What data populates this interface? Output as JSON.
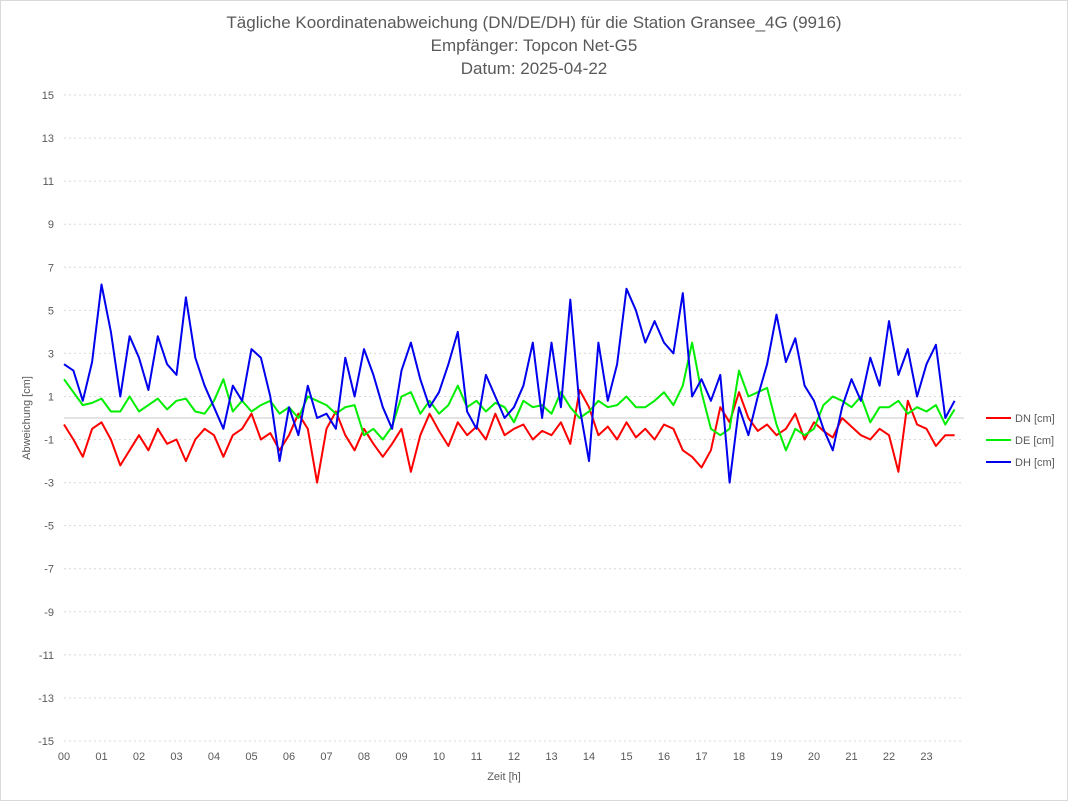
{
  "chart_data": {
    "type": "line",
    "title": [
      "Tägliche Koordinatenabweichung (DN/DE/DH) für die Station Gransee_4G (9916)",
      "Empfänger: Topcon Net-G5",
      "Datum: 2025-04-22"
    ],
    "xlabel": "Zeit [h]",
    "ylabel": "Abweichung [cm]",
    "xlim": [
      0,
      24
    ],
    "ylim": [
      -15,
      15
    ],
    "x_ticks": [
      "00",
      "01",
      "02",
      "03",
      "04",
      "05",
      "06",
      "07",
      "08",
      "09",
      "10",
      "11",
      "12",
      "13",
      "14",
      "15",
      "16",
      "17",
      "18",
      "19",
      "20",
      "21",
      "22",
      "23"
    ],
    "y_ticks": [
      15,
      13,
      11,
      9,
      7,
      5,
      3,
      1,
      -1,
      -3,
      -5,
      -7,
      -9,
      -11,
      -13,
      -15
    ],
    "grid": "horizontal dotted",
    "legend_position": "right",
    "x_start_h": 0,
    "x_step_h": 0.25,
    "series": [
      {
        "name": "DN [cm]",
        "color": "#ff0000",
        "values": [
          -0.3,
          -1.0,
          -1.8,
          -0.5,
          -0.2,
          -1.0,
          -2.2,
          -1.5,
          -0.8,
          -1.5,
          -0.5,
          -1.2,
          -1.0,
          -2.0,
          -1.0,
          -0.5,
          -0.8,
          -1.8,
          -0.8,
          -0.5,
          0.2,
          -1.0,
          -0.7,
          -1.5,
          -0.8,
          0.2,
          -0.5,
          -3.0,
          -0.5,
          0.3,
          -0.8,
          -1.5,
          -0.5,
          -1.2,
          -1.8,
          -1.2,
          -0.5,
          -2.5,
          -0.8,
          0.2,
          -0.6,
          -1.3,
          -0.2,
          -0.8,
          -0.4,
          -1.0,
          0.2,
          -0.8,
          -0.5,
          -0.3,
          -1.0,
          -0.6,
          -0.8,
          -0.2,
          -1.2,
          1.3,
          0.5,
          -0.8,
          -0.4,
          -1.0,
          -0.2,
          -0.9,
          -0.5,
          -1.0,
          -0.3,
          -0.5,
          -1.5,
          -1.8,
          -2.3,
          -1.5,
          0.5,
          -0.2,
          1.2,
          0.0,
          -0.6,
          -0.3,
          -0.8,
          -0.5,
          0.2,
          -1.0,
          -0.2,
          -0.6,
          -0.9,
          0.0,
          -0.4,
          -0.8,
          -1.0,
          -0.5,
          -0.8,
          -2.5,
          0.8,
          -0.3,
          -0.5,
          -1.3,
          -0.8,
          -0.8
        ]
      },
      {
        "name": "DE [cm]",
        "color": "#00ee00",
        "values": [
          1.8,
          1.2,
          0.6,
          0.7,
          0.9,
          0.3,
          0.3,
          1.0,
          0.3,
          0.6,
          0.9,
          0.4,
          0.8,
          0.9,
          0.3,
          0.2,
          0.8,
          1.8,
          0.3,
          0.8,
          0.3,
          0.6,
          0.8,
          0.2,
          0.5,
          0.0,
          1.0,
          0.8,
          0.6,
          0.2,
          0.5,
          0.6,
          -0.8,
          -0.5,
          -1.0,
          -0.4,
          1.0,
          1.2,
          0.2,
          0.8,
          0.2,
          0.6,
          1.5,
          0.5,
          0.8,
          0.3,
          0.7,
          0.5,
          -0.2,
          0.8,
          0.5,
          0.6,
          0.2,
          1.2,
          0.5,
          0.0,
          0.3,
          0.8,
          0.5,
          0.6,
          1.0,
          0.5,
          0.5,
          0.8,
          1.2,
          0.6,
          1.5,
          3.5,
          1.2,
          -0.5,
          -0.8,
          -0.5,
          2.2,
          1.0,
          1.2,
          1.4,
          -0.3,
          -1.5,
          -0.5,
          -0.8,
          -0.5,
          0.6,
          1.0,
          0.8,
          0.5,
          1.0,
          -0.2,
          0.5,
          0.5,
          0.8,
          0.2,
          0.5,
          0.3,
          0.6,
          -0.3,
          0.4
        ]
      },
      {
        "name": "DH [cm]",
        "color": "#0000ee",
        "values": [
          2.5,
          2.2,
          0.8,
          2.6,
          6.2,
          4.0,
          1.0,
          3.8,
          2.8,
          1.3,
          3.8,
          2.5,
          2.0,
          5.6,
          2.8,
          1.5,
          0.5,
          -0.5,
          1.5,
          0.8,
          3.2,
          2.8,
          1.0,
          -2.0,
          0.5,
          -0.8,
          1.5,
          0.0,
          0.2,
          -0.5,
          2.8,
          1.0,
          3.2,
          2.0,
          0.5,
          -0.5,
          2.2,
          3.5,
          1.8,
          0.5,
          1.2,
          2.5,
          4.0,
          0.3,
          -0.5,
          2.0,
          1.0,
          0.0,
          0.5,
          1.5,
          3.5,
          0.0,
          3.5,
          0.5,
          5.5,
          0.5,
          -2.0,
          3.5,
          0.8,
          2.5,
          6.0,
          5.0,
          3.5,
          4.5,
          3.5,
          3.0,
          5.8,
          1.0,
          1.8,
          0.8,
          2.0,
          -3.0,
          0.5,
          -0.8,
          1.0,
          2.5,
          4.8,
          2.6,
          3.7,
          1.5,
          0.8,
          -0.5,
          -1.5,
          0.5,
          1.8,
          0.8,
          2.8,
          1.5,
          4.5,
          2.0,
          3.2,
          1.0,
          2.5,
          3.4,
          0.0,
          0.8
        ]
      }
    ]
  }
}
